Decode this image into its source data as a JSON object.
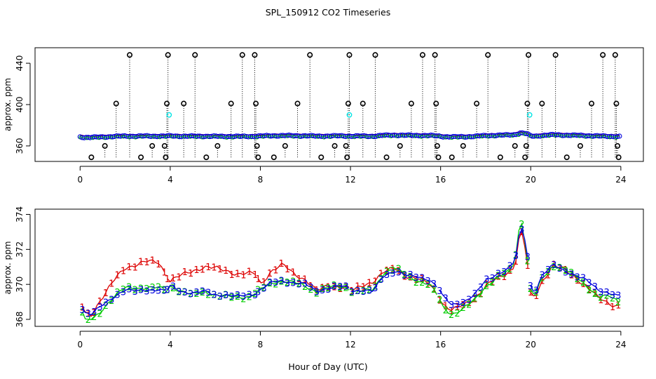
{
  "chart_data": [
    {
      "type": "scatter",
      "title": "SPL_150912  CO2 Timeseries",
      "xlabel": "",
      "ylabel": "approx. ppm",
      "xlim": [
        -2,
        25
      ],
      "ylim": [
        345,
        455
      ],
      "xticks": [
        "0",
        "4",
        "8",
        "12",
        "16",
        "20",
        "24"
      ],
      "yticks": [
        "360",
        "400",
        "440"
      ],
      "baseline": 349,
      "series": [
        {
          "name": "outliers (o, black, with drop lines)",
          "color": "#000000",
          "marker": "o",
          "points": [
            [
              0.5,
              349
            ],
            [
              1.1,
              360
            ],
            [
              1.6,
              401
            ],
            [
              2.2,
              448
            ],
            [
              2.7,
              349
            ],
            [
              3.2,
              360
            ],
            [
              3.75,
              360
            ],
            [
              3.8,
              349
            ],
            [
              3.85,
              401
            ],
            [
              3.9,
              448
            ],
            [
              4.6,
              401
            ],
            [
              5.1,
              448
            ],
            [
              5.6,
              349
            ],
            [
              6.1,
              360
            ],
            [
              6.7,
              401
            ],
            [
              7.2,
              448
            ],
            [
              7.75,
              448
            ],
            [
              7.8,
              401
            ],
            [
              7.85,
              360
            ],
            [
              7.9,
              349
            ],
            [
              8.6,
              349
            ],
            [
              9.1,
              360
            ],
            [
              9.65,
              401
            ],
            [
              10.2,
              448
            ],
            [
              10.7,
              349
            ],
            [
              11.3,
              360
            ],
            [
              11.8,
              360
            ],
            [
              11.85,
              349
            ],
            [
              11.9,
              401
            ],
            [
              11.95,
              448
            ],
            [
              12.55,
              401
            ],
            [
              13.1,
              448
            ],
            [
              13.6,
              349
            ],
            [
              14.2,
              360
            ],
            [
              14.7,
              401
            ],
            [
              15.2,
              448
            ],
            [
              15.75,
              448
            ],
            [
              15.8,
              401
            ],
            [
              15.85,
              360
            ],
            [
              15.9,
              349
            ],
            [
              16.5,
              349
            ],
            [
              17.0,
              360
            ],
            [
              17.6,
              401
            ],
            [
              18.1,
              448
            ],
            [
              18.65,
              349
            ],
            [
              19.3,
              360
            ],
            [
              19.75,
              349
            ],
            [
              19.8,
              360
            ],
            [
              19.85,
              401
            ],
            [
              19.9,
              448
            ],
            [
              20.5,
              401
            ],
            [
              21.1,
              448
            ],
            [
              21.6,
              349
            ],
            [
              22.2,
              360
            ],
            [
              22.7,
              401
            ],
            [
              23.2,
              448
            ],
            [
              23.75,
              448
            ],
            [
              23.8,
              401
            ],
            [
              23.85,
              360
            ],
            [
              23.9,
              349
            ]
          ]
        },
        {
          "name": "cyan markers",
          "color": "#00e5e5",
          "marker": "o",
          "points": [
            [
              3.95,
              390
            ],
            [
              11.95,
              390
            ],
            [
              19.95,
              390
            ]
          ]
        }
      ],
      "dense_series": [
        {
          "name": "1",
          "color": "#dd0000",
          "profile_offset": 1.2
        },
        {
          "name": "2",
          "color": "#00cc00",
          "profile_offset": 0.0
        },
        {
          "name": "3",
          "color": "#0000dd",
          "profile_offset": 0.0
        }
      ]
    },
    {
      "type": "line",
      "title": "",
      "xlabel": "Hour of Day (UTC)",
      "ylabel": "approx. ppm",
      "xlim": [
        -2,
        25
      ],
      "ylim": [
        367.6,
        374.3
      ],
      "xticks": [
        "0",
        "4",
        "8",
        "12",
        "16",
        "20",
        "24"
      ],
      "yticks": [
        "368",
        "370",
        "372",
        "374"
      ],
      "marker_labels": [
        "1",
        "2",
        "3"
      ],
      "profile_x": [
        0.0,
        0.2,
        0.5,
        0.8,
        1.2,
        1.6,
        2.0,
        2.5,
        3.0,
        3.5,
        3.8,
        4.0,
        4.5,
        5.0,
        5.5,
        6.0,
        6.5,
        7.0,
        7.5,
        7.8,
        8.0,
        8.5,
        9.0,
        9.5,
        10.0,
        10.5,
        11.0,
        11.5,
        11.9,
        12.1,
        12.5,
        13.0,
        13.5,
        14.0,
        14.5,
        15.0,
        15.5,
        15.9,
        16.1,
        16.5,
        17.0,
        17.5,
        18.0,
        18.5,
        19.0,
        19.3,
        19.55,
        19.8,
        20.0,
        20.2,
        20.5,
        21.0,
        21.5,
        22.0,
        22.5,
        23.0,
        23.5,
        23.9
      ],
      "series": [
        {
          "name": "3",
          "color": "#0000dd",
          "values": [
            368.9,
            368.4,
            368.3,
            368.6,
            369.0,
            369.4,
            369.7,
            369.6,
            369.7,
            369.7,
            369.6,
            369.9,
            369.6,
            369.5,
            369.6,
            369.4,
            369.4,
            369.3,
            369.4,
            369.5,
            369.7,
            370.1,
            370.2,
            370.1,
            370.0,
            369.6,
            369.8,
            369.9,
            369.8,
            369.6,
            369.7,
            369.6,
            370.5,
            370.8,
            370.5,
            370.4,
            370.3,
            369.8,
            369.3,
            368.8,
            369.0,
            369.4,
            370.2,
            370.6,
            370.9,
            371.3,
            373.3,
            372.4,
            369.8,
            369.6,
            370.5,
            371.1,
            370.8,
            370.5,
            370.2,
            369.7,
            369.5,
            369.3
          ]
        },
        {
          "name": "1",
          "color": "#dd0000",
          "offsets_to_series_3": [
            0.2,
            0.0,
            0.0,
            0.3,
            0.6,
            1.0,
            1.3,
            1.5,
            1.6,
            1.6,
            1.0,
            0.3,
            0.9,
            1.3,
            1.4,
            1.5,
            1.4,
            1.3,
            1.2,
            1.1,
            0.3,
            0.7,
            0.9,
            0.5,
            0.3,
            0.0,
            0.1,
            0.0,
            0.0,
            0.0,
            0.2,
            0.6,
            0.2,
            0.1,
            0.0,
            -0.1,
            -0.3,
            -0.4,
            -0.4,
            -0.3,
            -0.2,
            -0.2,
            -0.3,
            -0.3,
            -0.2,
            -0.2,
            -0.1,
            -0.6,
            -0.5,
            -0.3,
            -0.3,
            0.0,
            0.0,
            -0.1,
            -0.3,
            -0.5,
            -0.6,
            -0.5
          ]
        },
        {
          "name": "2",
          "color": "#00cc00",
          "offsets_to_series_3": [
            0.0,
            -0.5,
            -0.3,
            -0.3,
            -0.1,
            0.0,
            0.1,
            0.2,
            0.1,
            0.1,
            0.1,
            0.0,
            0.0,
            -0.1,
            0.0,
            0.0,
            -0.1,
            0.0,
            -0.1,
            0.0,
            0.0,
            0.0,
            0.0,
            0.0,
            -0.1,
            0.0,
            0.0,
            0.0,
            0.0,
            0.0,
            -0.1,
            0.1,
            0.2,
            0.1,
            0.0,
            -0.2,
            -0.3,
            -0.5,
            -0.6,
            -0.5,
            -0.4,
            -0.3,
            -0.3,
            -0.2,
            -0.2,
            0.0,
            0.6,
            -0.3,
            -0.2,
            -0.2,
            -0.2,
            0.0,
            0.1,
            -0.1,
            -0.3,
            -0.4,
            -0.2,
            -0.3
          ]
        }
      ]
    }
  ]
}
